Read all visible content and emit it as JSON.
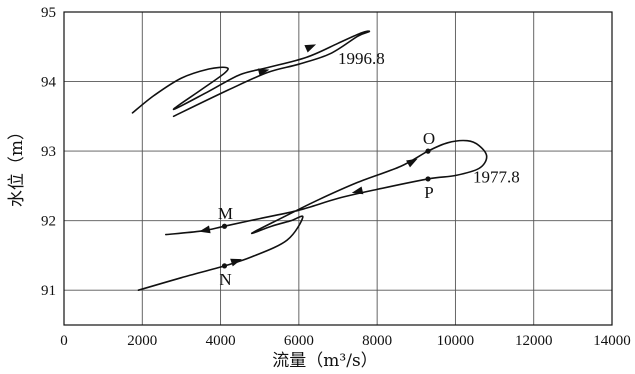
{
  "chart_data": {
    "type": "line",
    "xlabel": "流量（m³/s）",
    "ylabel": "水位（m）",
    "xlim": [
      0,
      14000
    ],
    "ylim": [
      90.5,
      95
    ],
    "x_ticks": [
      0,
      2000,
      4000,
      6000,
      8000,
      10000,
      12000,
      14000
    ],
    "y_ticks": [
      91,
      92,
      93,
      94,
      95
    ],
    "grid": true,
    "series": [
      {
        "name": "1996.8",
        "points": [
          [
            1750,
            93.55
          ],
          [
            2300,
            93.8
          ],
          [
            3000,
            94.05
          ],
          [
            3700,
            94.18
          ],
          [
            4150,
            94.2
          ],
          [
            4100,
            94.12
          ],
          [
            3500,
            93.88
          ],
          [
            2800,
            93.6
          ],
          [
            3700,
            93.86
          ],
          [
            4500,
            94.1
          ],
          [
            5200,
            94.2
          ],
          [
            6200,
            94.35
          ],
          [
            7000,
            94.55
          ],
          [
            7600,
            94.7
          ],
          [
            7800,
            94.72
          ],
          [
            7500,
            94.65
          ],
          [
            6800,
            94.4
          ],
          [
            6000,
            94.25
          ],
          [
            5200,
            94.13
          ],
          [
            4200,
            93.88
          ],
          [
            2800,
            93.5
          ]
        ],
        "arrows": [
          [
            6300,
            94.5
          ],
          [
            5100,
            94.15
          ]
        ]
      },
      {
        "name": "1977.8",
        "points": [
          [
            1900,
            91.0
          ],
          [
            3000,
            91.18
          ],
          [
            4100,
            91.35
          ],
          [
            4800,
            91.48
          ],
          [
            5700,
            91.72
          ],
          [
            6100,
            92.05
          ],
          [
            5800,
            92.0
          ],
          [
            5300,
            91.92
          ],
          [
            4800,
            91.82
          ],
          [
            5600,
            92.05
          ],
          [
            6500,
            92.3
          ],
          [
            7500,
            92.55
          ],
          [
            8600,
            92.78
          ],
          [
            9300,
            93.0
          ],
          [
            9800,
            93.12
          ],
          [
            10300,
            93.15
          ],
          [
            10600,
            93.08
          ],
          [
            10800,
            92.92
          ],
          [
            10600,
            92.75
          ],
          [
            10000,
            92.65
          ],
          [
            9300,
            92.6
          ],
          [
            8000,
            92.45
          ],
          [
            7000,
            92.32
          ],
          [
            6000,
            92.15
          ],
          [
            5000,
            92.03
          ],
          [
            4100,
            91.92
          ],
          [
            3500,
            91.85
          ],
          [
            2600,
            91.8
          ]
        ],
        "arrows": [
          [
            4400,
            91.42
          ],
          [
            8900,
            92.85
          ],
          [
            7500,
            92.42
          ],
          [
            3600,
            91.86
          ]
        ]
      }
    ],
    "annotations": [
      {
        "text": "1996.8",
        "x": 7000,
        "y": 94.25
      },
      {
        "text": "1977.8",
        "x": 10450,
        "y": 92.55
      },
      {
        "text": "M",
        "x": 4100,
        "y": 91.92,
        "label_pos": "above"
      },
      {
        "text": "N",
        "x": 4100,
        "y": 91.35,
        "label_pos": "below"
      },
      {
        "text": "O",
        "x": 9300,
        "y": 93.0,
        "label_pos": "above"
      },
      {
        "text": "P",
        "x": 9300,
        "y": 92.6,
        "label_pos": "below"
      }
    ]
  }
}
